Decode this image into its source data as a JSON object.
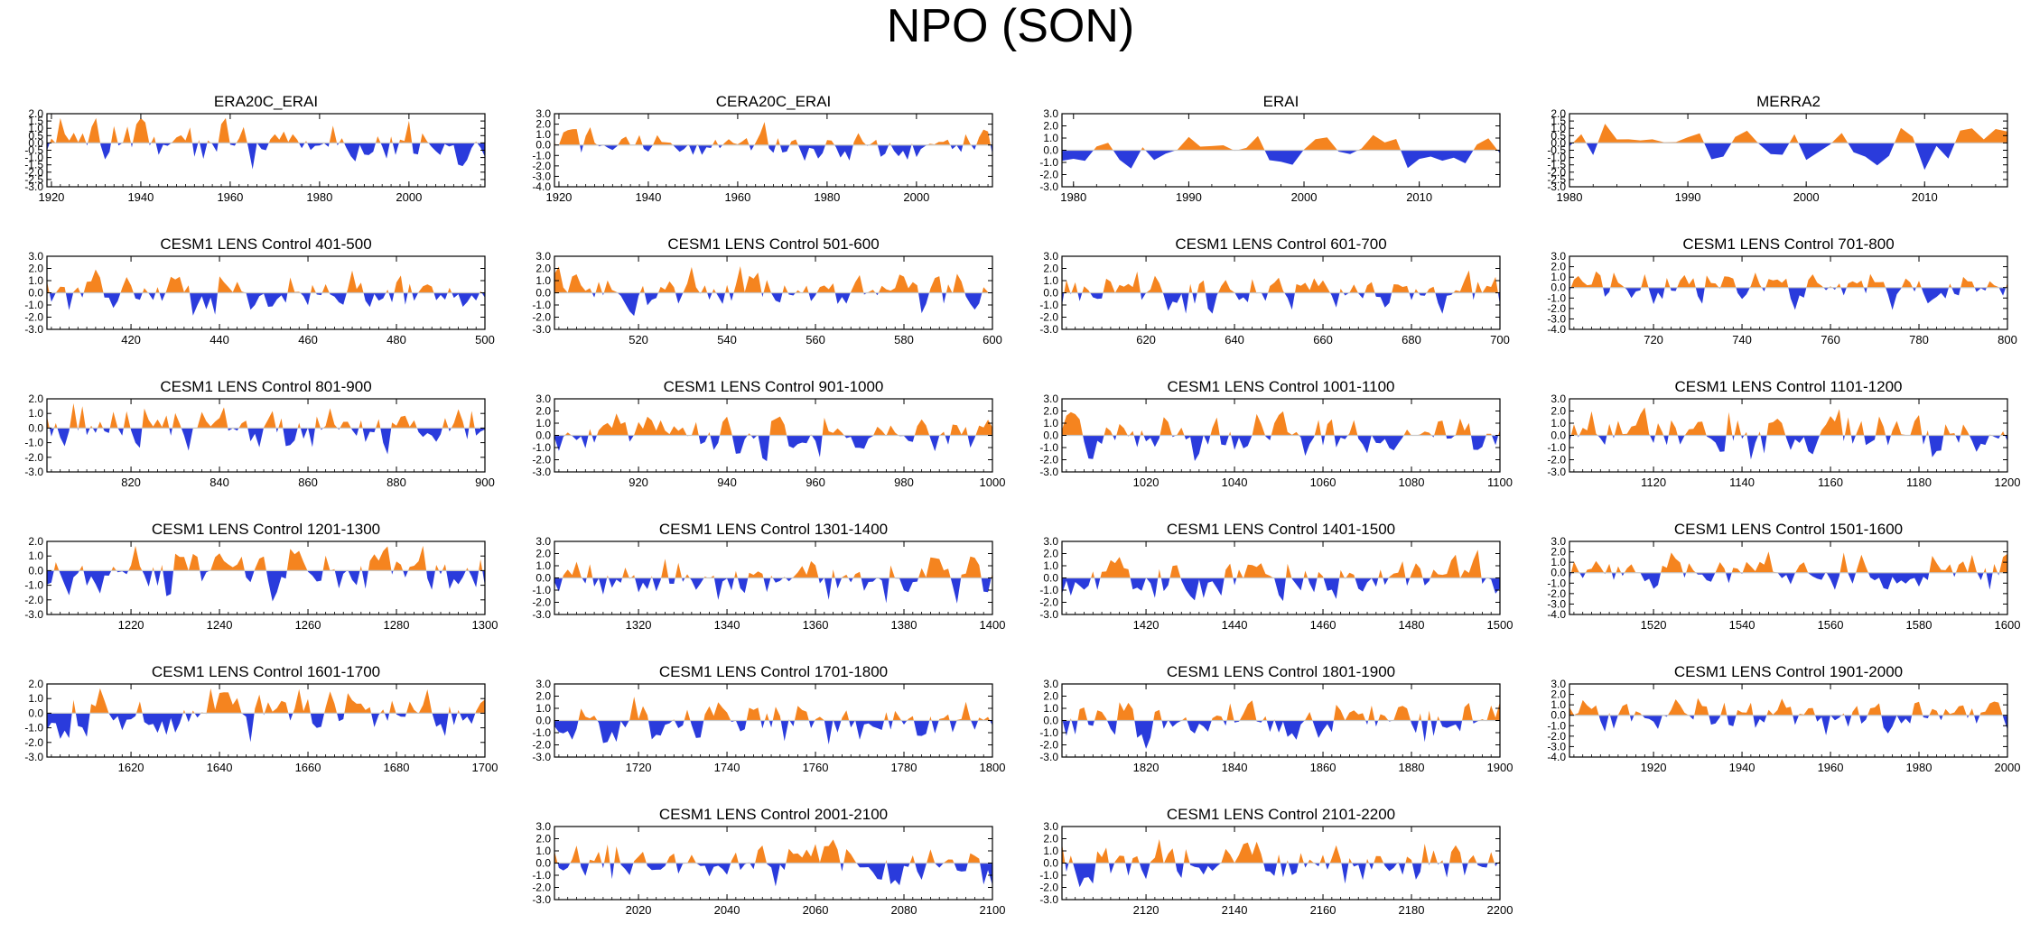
{
  "title": "NPO (SON)",
  "colors": {
    "positive": "#f5841f",
    "negative": "#2a3bdc",
    "axis": "#000000",
    "zero_line": "#c8c8c8"
  },
  "chart_data": [
    {
      "type": "area",
      "title": "ERA20C_ERAI",
      "xlim": [
        1919,
        2017
      ],
      "ylim": [
        -3.0,
        2.0
      ],
      "yticks": [
        2.0,
        1.5,
        1.0,
        0.5,
        0.0,
        -0.5,
        -1.0,
        -1.5,
        -2.0,
        -2.5,
        -3.0
      ],
      "xticks": [
        1920,
        1940,
        1960,
        1980,
        2000
      ],
      "seed": 11
    },
    {
      "type": "area",
      "title": "CERA20C_ERAI",
      "xlim": [
        1919,
        2017
      ],
      "ylim": [
        -4.0,
        3.0
      ],
      "yticks": [
        3.0,
        2.0,
        1.0,
        0.0,
        -1.0,
        -2.0,
        -3.0,
        -4.0
      ],
      "xticks": [
        1920,
        1940,
        1960,
        1980,
        2000
      ],
      "seed": 12
    },
    {
      "type": "area",
      "title": "ERAI",
      "xlim": [
        1979,
        2017
      ],
      "ylim": [
        -3.0,
        3.0
      ],
      "yticks": [
        3.0,
        2.0,
        1.0,
        0.0,
        -1.0,
        -2.0,
        -3.0
      ],
      "xticks": [
        1980,
        1990,
        2000,
        2010
      ],
      "seed": 13
    },
    {
      "type": "area",
      "title": "MERRA2",
      "xlim": [
        1980,
        2017
      ],
      "ylim": [
        -3.0,
        2.0
      ],
      "yticks": [
        2.0,
        1.5,
        1.0,
        0.5,
        0.0,
        -0.5,
        -1.0,
        -1.5,
        -2.0,
        -2.5,
        -3.0
      ],
      "xticks": [
        1980,
        1990,
        2000,
        2010
      ],
      "seed": 14
    },
    {
      "type": "area",
      "title": "CESM1 LENS Control 401-500",
      "xlim": [
        401,
        500
      ],
      "ylim": [
        -3.0,
        3.0
      ],
      "yticks": [
        3.0,
        2.0,
        1.0,
        0.0,
        -1.0,
        -2.0,
        -3.0
      ],
      "xticks": [
        420,
        440,
        460,
        480,
        500
      ],
      "seed": 21
    },
    {
      "type": "area",
      "title": "CESM1 LENS Control 501-600",
      "xlim": [
        501,
        600
      ],
      "ylim": [
        -3.0,
        3.0
      ],
      "yticks": [
        3.0,
        2.0,
        1.0,
        0.0,
        -1.0,
        -2.0,
        -3.0
      ],
      "xticks": [
        520,
        540,
        560,
        580,
        600
      ],
      "seed": 22
    },
    {
      "type": "area",
      "title": "CESM1 LENS Control 601-700",
      "xlim": [
        601,
        700
      ],
      "ylim": [
        -3.0,
        3.0
      ],
      "yticks": [
        3.0,
        2.0,
        1.0,
        0.0,
        -1.0,
        -2.0,
        -3.0
      ],
      "xticks": [
        620,
        640,
        660,
        680,
        700
      ],
      "seed": 23
    },
    {
      "type": "area",
      "title": "CESM1 LENS Control 701-800",
      "xlim": [
        701,
        800
      ],
      "ylim": [
        -4.0,
        3.0
      ],
      "yticks": [
        3.0,
        2.0,
        1.0,
        0.0,
        -1.0,
        -2.0,
        -3.0,
        -4.0
      ],
      "xticks": [
        720,
        740,
        760,
        780,
        800
      ],
      "seed": 24
    },
    {
      "type": "area",
      "title": "CESM1 LENS Control 801-900",
      "xlim": [
        801,
        900
      ],
      "ylim": [
        -3.0,
        2.0
      ],
      "yticks": [
        2.0,
        1.0,
        0.0,
        -1.0,
        -2.0,
        -3.0
      ],
      "xticks": [
        820,
        840,
        860,
        880,
        900
      ],
      "seed": 31
    },
    {
      "type": "area",
      "title": "CESM1 LENS Control 901-1000",
      "xlim": [
        901,
        1000
      ],
      "ylim": [
        -3.0,
        3.0
      ],
      "yticks": [
        3.0,
        2.0,
        1.0,
        0.0,
        -1.0,
        -2.0,
        -3.0
      ],
      "xticks": [
        920,
        940,
        960,
        980,
        1000
      ],
      "seed": 32
    },
    {
      "type": "area",
      "title": "CESM1 LENS Control 1001-1100",
      "xlim": [
        1001,
        1100
      ],
      "ylim": [
        -3.0,
        3.0
      ],
      "yticks": [
        3.0,
        2.0,
        1.0,
        0.0,
        -1.0,
        -2.0,
        -3.0
      ],
      "xticks": [
        1020,
        1040,
        1060,
        1080,
        1100
      ],
      "seed": 33
    },
    {
      "type": "area",
      "title": "CESM1 LENS Control 1101-1200",
      "xlim": [
        1101,
        1200
      ],
      "ylim": [
        -3.0,
        3.0
      ],
      "yticks": [
        3.0,
        2.0,
        1.0,
        0.0,
        -1.0,
        -2.0,
        -3.0
      ],
      "xticks": [
        1120,
        1140,
        1160,
        1180,
        1200
      ],
      "seed": 34
    },
    {
      "type": "area",
      "title": "CESM1 LENS Control 1201-1300",
      "xlim": [
        1201,
        1300
      ],
      "ylim": [
        -3.0,
        2.0
      ],
      "yticks": [
        2.0,
        1.0,
        0.0,
        -1.0,
        -2.0,
        -3.0
      ],
      "xticks": [
        1220,
        1240,
        1260,
        1280,
        1300
      ],
      "seed": 41
    },
    {
      "type": "area",
      "title": "CESM1 LENS Control 1301-1400",
      "xlim": [
        1301,
        1400
      ],
      "ylim": [
        -3.0,
        3.0
      ],
      "yticks": [
        3.0,
        2.0,
        1.0,
        0.0,
        -1.0,
        -2.0,
        -3.0
      ],
      "xticks": [
        1320,
        1340,
        1360,
        1380,
        1400
      ],
      "seed": 42
    },
    {
      "type": "area",
      "title": "CESM1 LENS Control 1401-1500",
      "xlim": [
        1401,
        1500
      ],
      "ylim": [
        -3.0,
        3.0
      ],
      "yticks": [
        3.0,
        2.0,
        1.0,
        0.0,
        -1.0,
        -2.0,
        -3.0
      ],
      "xticks": [
        1420,
        1440,
        1460,
        1480,
        1500
      ],
      "seed": 43
    },
    {
      "type": "area",
      "title": "CESM1 LENS Control 1501-1600",
      "xlim": [
        1501,
        1600
      ],
      "ylim": [
        -4.0,
        3.0
      ],
      "yticks": [
        3.0,
        2.0,
        1.0,
        0.0,
        -1.0,
        -2.0,
        -3.0,
        -4.0
      ],
      "xticks": [
        1520,
        1540,
        1560,
        1580,
        1600
      ],
      "seed": 44
    },
    {
      "type": "area",
      "title": "CESM1 LENS Control 1601-1700",
      "xlim": [
        1601,
        1700
      ],
      "ylim": [
        -3.0,
        2.0
      ],
      "yticks": [
        2.0,
        1.0,
        0.0,
        -1.0,
        -2.0,
        -3.0
      ],
      "xticks": [
        1620,
        1640,
        1660,
        1680,
        1700
      ],
      "seed": 51
    },
    {
      "type": "area",
      "title": "CESM1 LENS Control 1701-1800",
      "xlim": [
        1701,
        1800
      ],
      "ylim": [
        -3.0,
        3.0
      ],
      "yticks": [
        3.0,
        2.0,
        1.0,
        0.0,
        -1.0,
        -2.0,
        -3.0
      ],
      "xticks": [
        1720,
        1740,
        1760,
        1780,
        1800
      ],
      "seed": 52
    },
    {
      "type": "area",
      "title": "CESM1 LENS Control 1801-1900",
      "xlim": [
        1801,
        1900
      ],
      "ylim": [
        -3.0,
        3.0
      ],
      "yticks": [
        3.0,
        2.0,
        1.0,
        0.0,
        -1.0,
        -2.0,
        -3.0
      ],
      "xticks": [
        1820,
        1840,
        1860,
        1880,
        1900
      ],
      "seed": 53
    },
    {
      "type": "area",
      "title": "CESM1 LENS Control 1901-2000",
      "xlim": [
        1901,
        2000
      ],
      "ylim": [
        -4.0,
        3.0
      ],
      "yticks": [
        3.0,
        2.0,
        1.0,
        0.0,
        -1.0,
        -2.0,
        -3.0,
        -4.0
      ],
      "xticks": [
        1920,
        1940,
        1960,
        1980,
        2000
      ],
      "seed": 54
    },
    {
      "type": "area",
      "title": "CESM1 LENS Control 2001-2100",
      "xlim": [
        2001,
        2100
      ],
      "ylim": [
        -3.0,
        3.0
      ],
      "yticks": [
        3.0,
        2.0,
        1.0,
        0.0,
        -1.0,
        -2.0,
        -3.0
      ],
      "xticks": [
        2020,
        2040,
        2060,
        2080,
        2100
      ],
      "seed": 62
    },
    {
      "type": "area",
      "title": "CESM1 LENS Control 2101-2200",
      "xlim": [
        2101,
        2200
      ],
      "ylim": [
        -3.0,
        3.0
      ],
      "yticks": [
        3.0,
        2.0,
        1.0,
        0.0,
        -1.0,
        -2.0,
        -3.0
      ],
      "xticks": [
        2120,
        2140,
        2160,
        2180,
        2200
      ],
      "seed": 63
    }
  ]
}
